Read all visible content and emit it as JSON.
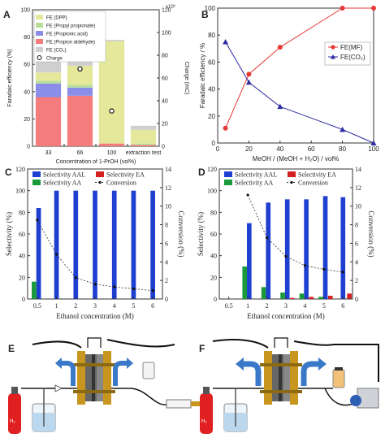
{
  "chart_data": [
    {
      "panel": "A",
      "type": "bar",
      "stacked": true,
      "categories": [
        "33",
        "66",
        "100",
        "extraction test"
      ],
      "xlabel": "Concentration of 1-PrOH (vol%)",
      "ylabel": "Faradaic efficiency (%)",
      "ylabel2": "Charge (mC)",
      "ylim": [
        0,
        100
      ],
      "y2lim": [
        0,
        120
      ],
      "y2_multiplier": "x10³",
      "yticks": [
        "0",
        "20",
        "40",
        "60",
        "80",
        "100"
      ],
      "y2ticks": [
        "0",
        "20",
        "40",
        "60",
        "80",
        "100",
        "120"
      ],
      "series": [
        {
          "name": "FE (Propion aldehyde)",
          "color": "#f47c7c",
          "values": [
            36,
            37,
            2,
            1
          ]
        },
        {
          "name": "FE (Propionic acid)",
          "color": "#8a8ee8",
          "values": [
            10,
            6,
            0,
            0
          ]
        },
        {
          "name": "FE (Propyl propionate)",
          "color": "#b6e09a",
          "values": [
            2,
            2,
            0,
            1
          ]
        },
        {
          "name": "FE (DPP)",
          "color": "#e5e79a",
          "values": [
            6,
            14,
            75,
            10
          ]
        },
        {
          "name": "FE (CO₂)",
          "color": "#cfcfcf",
          "values": [
            10,
            4,
            1,
            3
          ]
        }
      ],
      "charge_series": {
        "name": "Charge",
        "values": [
          79,
          68,
          31,
          null
        ]
      },
      "legend_order": [
        "FE (DPP)",
        "FE (Propyl propionate)",
        "FE (Propionic acid)",
        "FE (Propion aldehyde)",
        "FE (CO₂)",
        "Charge"
      ]
    },
    {
      "panel": "B",
      "type": "line",
      "xlabel": "MeOH / (MeOH + H₂O) / vol%",
      "ylabel": "Faradaic efficiency / %",
      "xlim": [
        0,
        100
      ],
      "ylim": [
        0,
        100
      ],
      "xticks": [
        "0",
        "20",
        "40",
        "60",
        "80",
        "100"
      ],
      "yticks": [
        "0",
        "20",
        "40",
        "60",
        "80",
        "100"
      ],
      "series": [
        {
          "name": "FE(MF)",
          "color": "#e53935",
          "x": [
            5,
            20,
            40,
            80,
            100
          ],
          "values": [
            11,
            51,
            71,
            100,
            100
          ]
        },
        {
          "name": "FE(CO₂)",
          "color": "#2c2ca0",
          "x": [
            5,
            20,
            40,
            80,
            100
          ],
          "values": [
            75,
            45,
            27,
            10,
            0
          ]
        }
      ]
    },
    {
      "panel": "C",
      "type": "bar",
      "categories": [
        "0.5",
        "1",
        "2",
        "3",
        "4",
        "5",
        "6"
      ],
      "xlabel": "Ethanol concentration (M)",
      "ylabel": "Selectivity (%)",
      "ylabel2": "Conversion (%)",
      "ylim": [
        0,
        120
      ],
      "y2lim": [
        0,
        14
      ],
      "yticks": [
        "0",
        "20",
        "40",
        "60",
        "80",
        "100",
        "120"
      ],
      "y2ticks": [
        "0",
        "2",
        "4",
        "6",
        "8",
        "10",
        "12",
        "14"
      ],
      "series": [
        {
          "name": "Selectivity AAL",
          "color": "#1f3fd1",
          "values": [
            84,
            100,
            100,
            100,
            100,
            100,
            100
          ]
        },
        {
          "name": "Selectivity AA",
          "color": "#1a9a3a",
          "values": [
            16,
            0,
            0,
            0,
            0,
            0,
            0
          ]
        },
        {
          "name": "Selectivity EA",
          "color": "#d42020",
          "values": [
            0,
            0,
            0,
            0,
            0,
            0,
            0
          ]
        }
      ],
      "conversion": {
        "name": "Conversion",
        "values": [
          8.5,
          4.8,
          2.3,
          1.6,
          1.3,
          1.1,
          0.9
        ]
      }
    },
    {
      "panel": "D",
      "type": "bar",
      "categories": [
        "0.5",
        "1",
        "2",
        "3",
        "4",
        "5",
        "6"
      ],
      "xlabel": "Ethanol concentration (M)",
      "ylabel": "Selectivity (%)",
      "ylabel2": "Conversion (%)",
      "ylim": [
        0,
        120
      ],
      "y2lim": [
        0,
        14
      ],
      "yticks": [
        "0",
        "20",
        "40",
        "60",
        "80",
        "100",
        "120"
      ],
      "y2ticks": [
        "0",
        "2",
        "4",
        "6",
        "8",
        "10",
        "12",
        "14"
      ],
      "series": [
        {
          "name": "Selectivity AAL",
          "color": "#1f3fd1",
          "values": [
            null,
            70,
            89,
            92,
            92,
            95,
            94
          ]
        },
        {
          "name": "Selectivity AA",
          "color": "#1a9a3a",
          "values": [
            null,
            30,
            11,
            6,
            5,
            2,
            0
          ]
        },
        {
          "name": "Selectivity EA",
          "color": "#d42020",
          "values": [
            null,
            0,
            0,
            1,
            2,
            3,
            5
          ]
        }
      ],
      "conversion": {
        "name": "Conversion",
        "values": [
          null,
          11.2,
          6.6,
          4.6,
          3.6,
          3.2,
          2.9
        ]
      }
    }
  ],
  "panels": {
    "E": {
      "label": "E",
      "cylinder_label": "H₂"
    },
    "F": {
      "label": "F",
      "cylinder_label": "H₂"
    }
  },
  "colors": {
    "steel": "#8c8c8c",
    "copper": "#c8961e",
    "cylinder": "#e02020",
    "arrow": "#3a78c8"
  }
}
